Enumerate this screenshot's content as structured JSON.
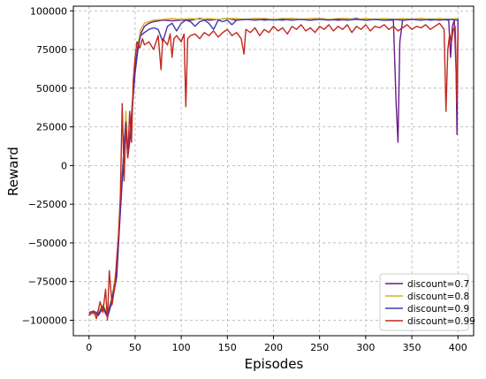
{
  "chart_data": {
    "type": "line",
    "title": "",
    "xlabel": "Episodes",
    "ylabel": "Reward",
    "xlim": [
      -17,
      417
    ],
    "ylim": [
      -110000,
      103000
    ],
    "xticks": [
      0,
      50,
      100,
      150,
      200,
      250,
      300,
      350,
      400
    ],
    "yticks": [
      -100000,
      -75000,
      -50000,
      -25000,
      0,
      25000,
      50000,
      75000,
      100000
    ],
    "xtick_labels": [
      "0",
      "50",
      "100",
      "150",
      "200",
      "250",
      "300",
      "350",
      "400"
    ],
    "ytick_labels": [
      "−100000",
      "−75000",
      "−50000",
      "−25000",
      "0",
      "25000",
      "50000",
      "75000",
      "100000"
    ],
    "grid": true,
    "legend_position": "bottom-right",
    "series": [
      {
        "name": "discount=0.7",
        "color": "#6a1b8a",
        "points": [
          [
            0,
            -96000
          ],
          [
            5,
            -95000
          ],
          [
            10,
            -97000
          ],
          [
            15,
            -92000
          ],
          [
            20,
            -98000
          ],
          [
            25,
            -88000
          ],
          [
            30,
            -72000
          ],
          [
            33,
            -40000
          ],
          [
            36,
            -10000
          ],
          [
            38,
            15000
          ],
          [
            40,
            30000
          ],
          [
            42,
            5000
          ],
          [
            45,
            20000
          ],
          [
            48,
            45000
          ],
          [
            50,
            60000
          ],
          [
            53,
            75000
          ],
          [
            56,
            85000
          ],
          [
            60,
            90000
          ],
          [
            65,
            92000
          ],
          [
            70,
            93000
          ],
          [
            80,
            94000
          ],
          [
            90,
            93500
          ],
          [
            100,
            94000
          ],
          [
            110,
            94000
          ],
          [
            120,
            95000
          ],
          [
            130,
            94000
          ],
          [
            140,
            94500
          ],
          [
            150,
            95000
          ],
          [
            160,
            94000
          ],
          [
            170,
            94500
          ],
          [
            180,
            95000
          ],
          [
            190,
            94000
          ],
          [
            200,
            94500
          ],
          [
            210,
            94000
          ],
          [
            220,
            95000
          ],
          [
            230,
            94500
          ],
          [
            240,
            94000
          ],
          [
            250,
            95000
          ],
          [
            260,
            94500
          ],
          [
            270,
            94000
          ],
          [
            280,
            94500
          ],
          [
            290,
            95000
          ],
          [
            300,
            94000
          ],
          [
            310,
            94500
          ],
          [
            320,
            94000
          ],
          [
            330,
            94000
          ],
          [
            333,
            40000
          ],
          [
            335,
            15000
          ],
          [
            337,
            80000
          ],
          [
            340,
            94000
          ],
          [
            350,
            94500
          ],
          [
            360,
            95000
          ],
          [
            370,
            94000
          ],
          [
            380,
            94500
          ],
          [
            390,
            94000
          ],
          [
            392,
            70000
          ],
          [
            394,
            90000
          ],
          [
            396,
            94000
          ],
          [
            398,
            60000
          ],
          [
            399,
            20000
          ],
          [
            400,
            95000
          ]
        ]
      },
      {
        "name": "discount=0.8",
        "color": "#d4b21e",
        "points": [
          [
            0,
            -95000
          ],
          [
            5,
            -96000
          ],
          [
            10,
            -94000
          ],
          [
            15,
            -90000
          ],
          [
            20,
            -95000
          ],
          [
            25,
            -85000
          ],
          [
            30,
            -65000
          ],
          [
            33,
            -35000
          ],
          [
            36,
            -5000
          ],
          [
            38,
            10000
          ],
          [
            40,
            35000
          ],
          [
            42,
            10000
          ],
          [
            45,
            25000
          ],
          [
            48,
            50000
          ],
          [
            50,
            65000
          ],
          [
            53,
            78000
          ],
          [
            56,
            88000
          ],
          [
            60,
            92000
          ],
          [
            65,
            93000
          ],
          [
            70,
            94000
          ],
          [
            80,
            94500
          ],
          [
            90,
            95000
          ],
          [
            100,
            94500
          ],
          [
            110,
            95000
          ],
          [
            120,
            94500
          ],
          [
            130,
            95000
          ],
          [
            140,
            94500
          ],
          [
            150,
            95000
          ],
          [
            160,
            95000
          ],
          [
            170,
            94500
          ],
          [
            180,
            95000
          ],
          [
            190,
            95000
          ],
          [
            200,
            94500
          ],
          [
            210,
            95000
          ],
          [
            220,
            95000
          ],
          [
            230,
            94500
          ],
          [
            240,
            95000
          ],
          [
            250,
            95000
          ],
          [
            260,
            94500
          ],
          [
            270,
            95000
          ],
          [
            280,
            95000
          ],
          [
            290,
            94500
          ],
          [
            300,
            95000
          ],
          [
            310,
            94500
          ],
          [
            320,
            95000
          ],
          [
            330,
            94500
          ],
          [
            340,
            95000
          ],
          [
            350,
            94500
          ],
          [
            360,
            95000
          ],
          [
            370,
            94500
          ],
          [
            380,
            95000
          ],
          [
            390,
            94500
          ],
          [
            400,
            95000
          ]
        ]
      },
      {
        "name": "discount=0.9",
        "color": "#3a3ab0",
        "points": [
          [
            0,
            -95000
          ],
          [
            5,
            -94000
          ],
          [
            10,
            -96000
          ],
          [
            15,
            -91000
          ],
          [
            20,
            -97000
          ],
          [
            25,
            -86000
          ],
          [
            30,
            -70000
          ],
          [
            33,
            -38000
          ],
          [
            36,
            -8000
          ],
          [
            38,
            12000
          ],
          [
            40,
            28000
          ],
          [
            42,
            8000
          ],
          [
            45,
            22000
          ],
          [
            48,
            48000
          ],
          [
            50,
            63000
          ],
          [
            53,
            77000
          ],
          [
            56,
            84000
          ],
          [
            60,
            86000
          ],
          [
            65,
            88000
          ],
          [
            70,
            89000
          ],
          [
            75,
            88000
          ],
          [
            80,
            80000
          ],
          [
            85,
            90000
          ],
          [
            90,
            92000
          ],
          [
            95,
            87000
          ],
          [
            100,
            92000
          ],
          [
            105,
            94000
          ],
          [
            110,
            93000
          ],
          [
            115,
            90000
          ],
          [
            120,
            93000
          ],
          [
            125,
            94000
          ],
          [
            130,
            92000
          ],
          [
            135,
            88000
          ],
          [
            140,
            94000
          ],
          [
            145,
            93000
          ],
          [
            150,
            94000
          ],
          [
            155,
            91000
          ],
          [
            160,
            94000
          ],
          [
            170,
            94500
          ],
          [
            180,
            94000
          ],
          [
            190,
            94500
          ],
          [
            200,
            94000
          ],
          [
            210,
            94500
          ],
          [
            220,
            94000
          ],
          [
            230,
            94500
          ],
          [
            240,
            94000
          ],
          [
            250,
            94500
          ],
          [
            260,
            94000
          ],
          [
            270,
            94500
          ],
          [
            280,
            94000
          ],
          [
            290,
            94500
          ],
          [
            300,
            94000
          ],
          [
            310,
            94500
          ],
          [
            320,
            94000
          ],
          [
            330,
            94500
          ],
          [
            340,
            94000
          ],
          [
            350,
            94500
          ],
          [
            360,
            94000
          ],
          [
            370,
            94500
          ],
          [
            380,
            94000
          ],
          [
            390,
            94500
          ],
          [
            400,
            94000
          ]
        ]
      },
      {
        "name": "discount=0.99",
        "color": "#c0281e",
        "points": [
          [
            0,
            -97000
          ],
          [
            5,
            -94000
          ],
          [
            8,
            -99000
          ],
          [
            12,
            -88000
          ],
          [
            15,
            -95000
          ],
          [
            18,
            -80000
          ],
          [
            20,
            -100000
          ],
          [
            22,
            -68000
          ],
          [
            25,
            -90000
          ],
          [
            28,
            -78000
          ],
          [
            30,
            -60000
          ],
          [
            32,
            -45000
          ],
          [
            34,
            -20000
          ],
          [
            36,
            40000
          ],
          [
            38,
            -10000
          ],
          [
            40,
            25000
          ],
          [
            42,
            5000
          ],
          [
            44,
            35000
          ],
          [
            46,
            15000
          ],
          [
            48,
            55000
          ],
          [
            50,
            70000
          ],
          [
            52,
            80000
          ],
          [
            55,
            76000
          ],
          [
            58,
            82000
          ],
          [
            60,
            78000
          ],
          [
            65,
            80000
          ],
          [
            70,
            75000
          ],
          [
            75,
            84000
          ],
          [
            78,
            62000
          ],
          [
            80,
            82000
          ],
          [
            85,
            78000
          ],
          [
            88,
            85000
          ],
          [
            90,
            70000
          ],
          [
            92,
            82000
          ],
          [
            95,
            84000
          ],
          [
            100,
            80000
          ],
          [
            103,
            85000
          ],
          [
            105,
            38000
          ],
          [
            107,
            82000
          ],
          [
            110,
            84000
          ],
          [
            115,
            85000
          ],
          [
            120,
            82000
          ],
          [
            125,
            86000
          ],
          [
            130,
            84000
          ],
          [
            135,
            87000
          ],
          [
            140,
            83000
          ],
          [
            145,
            86000
          ],
          [
            150,
            88000
          ],
          [
            155,
            84000
          ],
          [
            160,
            86000
          ],
          [
            165,
            82000
          ],
          [
            168,
            72000
          ],
          [
            170,
            88000
          ],
          [
            175,
            86000
          ],
          [
            180,
            89000
          ],
          [
            185,
            84000
          ],
          [
            190,
            88000
          ],
          [
            195,
            86000
          ],
          [
            200,
            90000
          ],
          [
            205,
            87000
          ],
          [
            210,
            89000
          ],
          [
            215,
            85000
          ],
          [
            220,
            90000
          ],
          [
            225,
            88000
          ],
          [
            230,
            91000
          ],
          [
            235,
            87000
          ],
          [
            240,
            89000
          ],
          [
            245,
            86000
          ],
          [
            250,
            90000
          ],
          [
            255,
            88000
          ],
          [
            260,
            91000
          ],
          [
            265,
            87000
          ],
          [
            270,
            90000
          ],
          [
            275,
            88000
          ],
          [
            280,
            91000
          ],
          [
            285,
            86000
          ],
          [
            290,
            90000
          ],
          [
            295,
            88000
          ],
          [
            300,
            91000
          ],
          [
            305,
            87000
          ],
          [
            310,
            90000
          ],
          [
            315,
            89000
          ],
          [
            320,
            91000
          ],
          [
            325,
            88000
          ],
          [
            330,
            90000
          ],
          [
            335,
            87000
          ],
          [
            340,
            89000
          ],
          [
            345,
            91000
          ],
          [
            350,
            88000
          ],
          [
            355,
            90000
          ],
          [
            360,
            89000
          ],
          [
            365,
            91000
          ],
          [
            370,
            88000
          ],
          [
            375,
            90000
          ],
          [
            380,
            92000
          ],
          [
            385,
            88000
          ],
          [
            387,
            35000
          ],
          [
            389,
            75000
          ],
          [
            391,
            85000
          ],
          [
            393,
            80000
          ],
          [
            395,
            88000
          ],
          [
            397,
            90000
          ],
          [
            399,
            40000
          ],
          [
            400,
            88000
          ]
        ]
      }
    ]
  }
}
